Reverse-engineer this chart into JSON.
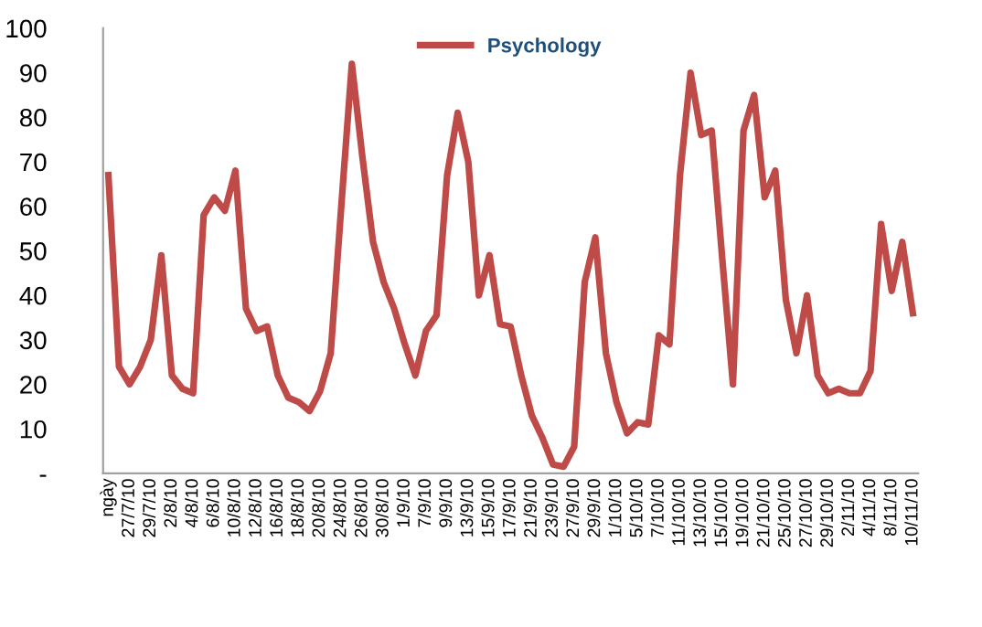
{
  "chart_data": {
    "type": "line",
    "categories": [
      "ngày",
      null,
      "27/7/10",
      null,
      "29/7/10",
      null,
      "2/8/10",
      null,
      "4/8/10",
      null,
      "6/8/10",
      null,
      "10/8/10",
      null,
      "12/8/10",
      null,
      "16/8/10",
      null,
      "18/8/10",
      null,
      "20/8/10",
      null,
      "24/8/10",
      null,
      "26/8/10",
      null,
      "30/8/10",
      null,
      "1/9/10",
      null,
      "7/9/10",
      null,
      "9/9/10",
      null,
      "13/9/10",
      null,
      "15/9/10",
      null,
      "17/9/10",
      null,
      "21/9/10",
      null,
      "23/9/10",
      null,
      "27/9/10",
      null,
      "29/9/10",
      null,
      "1/10/10",
      null,
      "5/10/10",
      null,
      "7/10/10",
      null,
      "11/10/10",
      null,
      "13/10/10",
      null,
      "15/10/10",
      null,
      "19/10/10",
      null,
      "21/10/10",
      null,
      "25/10/10",
      null,
      "27/10/10",
      null,
      "29/10/10",
      null,
      "2/11/10",
      null,
      "4/11/10",
      null,
      "8/11/10",
      null,
      "10/11/10"
    ],
    "series": [
      {
        "name": "Psychology",
        "color": "#be4b48",
        "values": [
          67,
          24,
          20,
          24,
          30,
          49,
          22,
          19,
          18,
          58,
          62,
          59,
          68,
          37,
          32,
          33,
          22,
          17,
          16,
          14,
          18.5,
          27,
          60,
          92,
          71,
          52,
          43,
          37,
          29,
          22,
          32,
          35.5,
          67,
          81,
          70,
          40,
          49,
          33.5,
          33,
          22,
          13,
          8,
          2,
          1.5,
          6,
          43,
          53,
          27,
          16,
          9,
          11.5,
          11,
          31,
          29,
          67,
          90,
          76,
          77,
          48,
          20,
          77,
          85,
          62,
          68,
          39,
          27,
          40,
          22,
          18,
          19,
          18,
          18,
          23,
          56,
          41,
          52,
          36
        ]
      }
    ],
    "ylim": [
      0,
      100
    ],
    "yticks": [
      {
        "value": 0,
        "label": "-"
      },
      10,
      20,
      30,
      40,
      50,
      60,
      70,
      80,
      90,
      100
    ],
    "legend": "top",
    "grid": false,
    "marker": "none",
    "line_style": "solid"
  }
}
